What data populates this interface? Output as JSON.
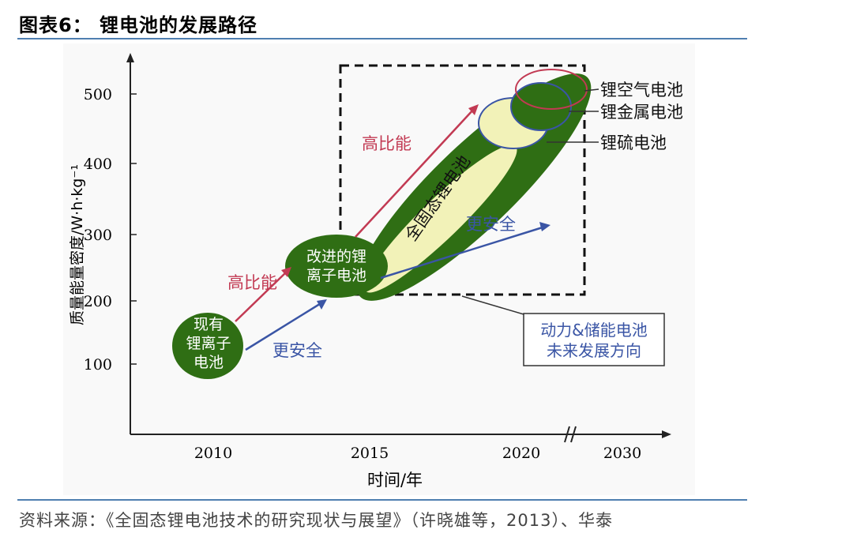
{
  "figure": {
    "title": "图表6： 锂电池的发展路径",
    "source": "资料来源：《全固态锂电池技术的研究现状与展望》（许晓雄等，2013）、华泰"
  },
  "chart_data": {
    "type": "scatter",
    "title": "",
    "xlabel": "时间/年",
    "ylabel": "质量能量密度/W·h·kg⁻¹",
    "x_ticks": [
      "2010",
      "2015",
      "2020",
      "2030"
    ],
    "y_ticks": [
      100,
      200,
      300,
      400,
      500
    ],
    "xlim": [
      2006,
      2030
    ],
    "ylim": [
      0,
      560
    ],
    "grid": false,
    "stages": [
      {
        "name": "现有锂离子电池",
        "lines": [
          "现有",
          "锂离子",
          "电池"
        ],
        "x": 2010,
        "y": 130
      },
      {
        "name": "改进的锂离子电池",
        "lines": [
          "改进的锂",
          "离子电池"
        ],
        "x": 2014,
        "y": 250
      },
      {
        "name": "全固态锂电池",
        "lines": [
          "全固态锂电池"
        ],
        "x_range": [
          2015.5,
          2023
        ],
        "y_range": [
          300,
          540
        ]
      },
      {
        "name": "锂硫电池",
        "x": 2020.5,
        "y": 465
      },
      {
        "name": "锂金属电池",
        "x": 2021.5,
        "y": 490
      },
      {
        "name": "锂空气电池",
        "x": 2022,
        "y": 505
      }
    ],
    "arrow_labels": {
      "higher_energy": "高比能",
      "safer": "更安全"
    },
    "callouts": {
      "lithium_air": "锂空气电池",
      "lithium_metal": "锂金属电池",
      "lithium_sulfur": "锂硫电池",
      "direction_line1": "动力&储能电池",
      "direction_line2": "未来发展方向"
    },
    "colors": {
      "dark_green": "#2f6e14",
      "light_yellow": "#f2f2b8",
      "arrow_red": "#c23a53",
      "arrow_blue": "#3a55a5",
      "lithium_air_ring": "#c23a53",
      "lithium_sulfur_ring": "#3a55a5",
      "callout_border": "#333333",
      "callout_text": "#3a55a5"
    }
  }
}
